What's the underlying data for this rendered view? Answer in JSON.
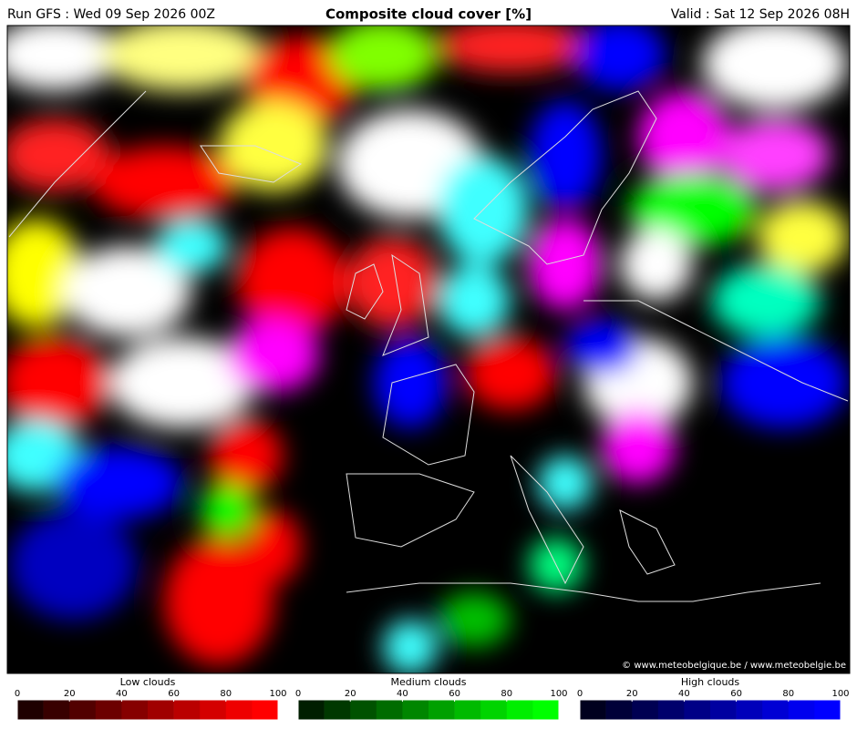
{
  "header": {
    "left": "Run GFS : Wed 09 Sep 2026 00Z",
    "title": "Composite cloud cover [%]",
    "right": "Valid : Sat 12 Sep 2026 08H"
  },
  "map": {
    "credit": "© www.meteobelgique.be / www.meteobelgie.be"
  },
  "legends": [
    {
      "title": "Low clouds",
      "ticks": [
        0,
        20,
        40,
        60,
        80,
        100
      ],
      "colors": [
        "#1e0000",
        "#380000",
        "#520000",
        "#6c0000",
        "#860000",
        "#a00000",
        "#ba0000",
        "#d40000",
        "#ee0000",
        "#ff0000"
      ]
    },
    {
      "title": "Medium clouds",
      "ticks": [
        0,
        20,
        40,
        60,
        80,
        100
      ],
      "colors": [
        "#001e00",
        "#003800",
        "#005200",
        "#006c00",
        "#008600",
        "#00a000",
        "#00ba00",
        "#00d400",
        "#00ee00",
        "#00ff00"
      ]
    },
    {
      "title": "High clouds",
      "ticks": [
        0,
        20,
        40,
        60,
        80,
        100
      ],
      "colors": [
        "#00001e",
        "#000038",
        "#000052",
        "#00006c",
        "#000086",
        "#0000a0",
        "#0000ba",
        "#0000d4",
        "#0000ee",
        "#0000ff"
      ]
    }
  ]
}
